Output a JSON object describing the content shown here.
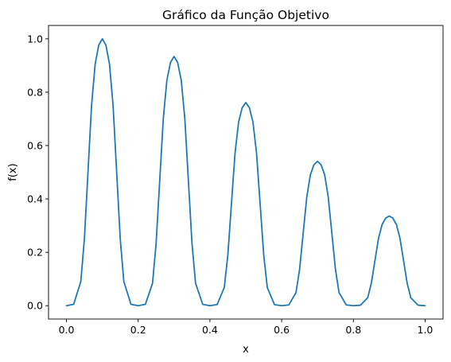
{
  "chart_data": {
    "type": "line",
    "title": "Gráfico da Função Objetivo",
    "xlabel": "x",
    "ylabel": "f(x)",
    "xlim": [
      -0.05,
      1.05
    ],
    "ylim": [
      -0.05,
      1.05
    ],
    "xticks": [
      0.0,
      0.2,
      0.4,
      0.6,
      0.8,
      1.0
    ],
    "xtick_labels": [
      "0.0",
      "0.2",
      "0.4",
      "0.6",
      "0.8",
      "1.0"
    ],
    "yticks": [
      0.0,
      0.2,
      0.4,
      0.6,
      0.8,
      1.0
    ],
    "ytick_labels": [
      "0.0",
      "0.2",
      "0.4",
      "0.6",
      "0.8",
      "1.0"
    ],
    "grid": false,
    "series": [
      {
        "color": "#1f77b4",
        "x": [
          0.0,
          0.02,
          0.04,
          0.05,
          0.06,
          0.07,
          0.08,
          0.09,
          0.1,
          0.11,
          0.12,
          0.13,
          0.14,
          0.15,
          0.16,
          0.18,
          0.2,
          0.22,
          0.24,
          0.25,
          0.26,
          0.27,
          0.28,
          0.29,
          0.3,
          0.31,
          0.32,
          0.33,
          0.34,
          0.35,
          0.36,
          0.38,
          0.4,
          0.42,
          0.44,
          0.45,
          0.46,
          0.47,
          0.48,
          0.49,
          0.5,
          0.51,
          0.52,
          0.53,
          0.54,
          0.55,
          0.56,
          0.58,
          0.6,
          0.62,
          0.64,
          0.65,
          0.66,
          0.67,
          0.68,
          0.69,
          0.7,
          0.71,
          0.72,
          0.73,
          0.74,
          0.75,
          0.76,
          0.78,
          0.8,
          0.82,
          0.84,
          0.85,
          0.86,
          0.87,
          0.88,
          0.89,
          0.9,
          0.91,
          0.92,
          0.93,
          0.94,
          0.95,
          0.96,
          0.98,
          1.0
        ],
        "y": [
          0.0,
          0.005,
          0.09,
          0.25,
          0.5,
          0.75,
          0.905,
          0.976,
          1.0,
          0.976,
          0.905,
          0.75,
          0.5,
          0.25,
          0.09,
          0.005,
          0.0,
          0.005,
          0.084,
          0.234,
          0.468,
          0.701,
          0.845,
          0.911,
          0.934,
          0.911,
          0.845,
          0.701,
          0.468,
          0.234,
          0.084,
          0.005,
          0.0,
          0.004,
          0.068,
          0.19,
          0.381,
          0.571,
          0.688,
          0.742,
          0.761,
          0.742,
          0.688,
          0.571,
          0.381,
          0.19,
          0.068,
          0.004,
          0.0,
          0.003,
          0.049,
          0.136,
          0.271,
          0.406,
          0.49,
          0.528,
          0.541,
          0.528,
          0.49,
          0.406,
          0.271,
          0.136,
          0.049,
          0.003,
          0.0,
          0.002,
          0.03,
          0.084,
          0.168,
          0.252,
          0.304,
          0.328,
          0.336,
          0.328,
          0.304,
          0.252,
          0.168,
          0.084,
          0.03,
          0.002,
          0.0
        ]
      }
    ]
  }
}
